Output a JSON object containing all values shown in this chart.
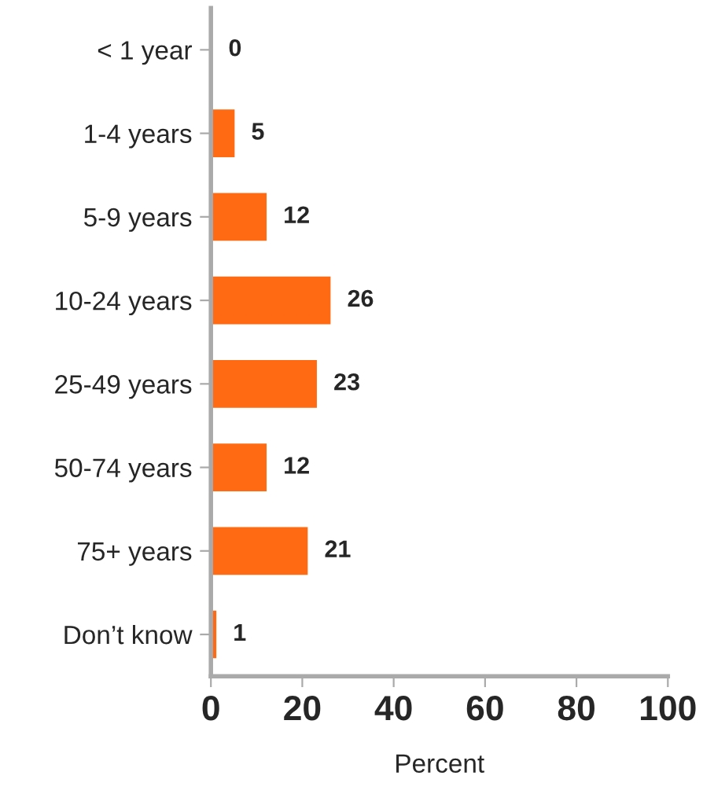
{
  "chart_data": {
    "type": "bar",
    "orientation": "horizontal",
    "categories": [
      "< 1 year",
      "1-4 years",
      "5-9 years",
      "10-24 years",
      "25-49 years",
      "50-74 years",
      "75+ years",
      "Don’t know"
    ],
    "values": [
      0,
      5,
      12,
      26,
      23,
      12,
      21,
      1
    ],
    "color": "#ff6a13",
    "xlabel": "Percent",
    "xlim": [
      0,
      100
    ],
    "xticks": [
      0,
      20,
      40,
      60,
      80,
      100
    ],
    "data_labels": true,
    "grid": false
  }
}
